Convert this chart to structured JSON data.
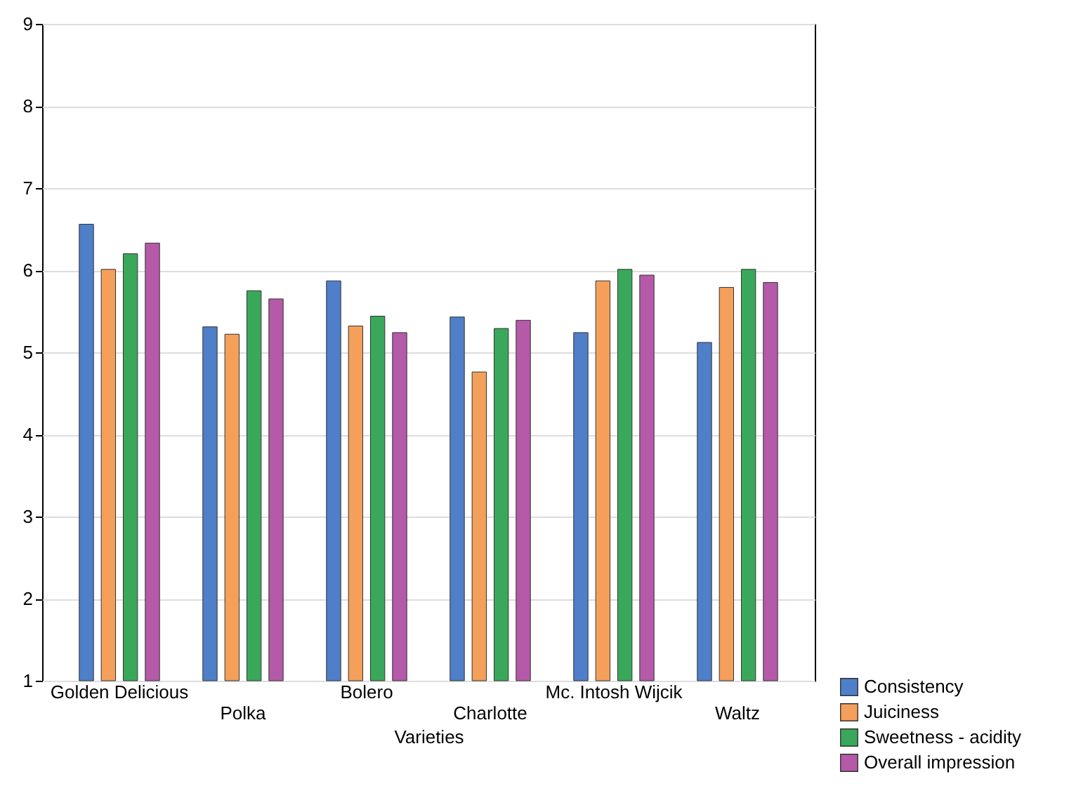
{
  "chart_data": {
    "type": "bar",
    "xlabel": "Varieties",
    "categories": [
      "Golden Delicious",
      "Polka",
      "Bolero",
      "Charlotte",
      "Mc. Intosh Wijcik",
      "Waltz"
    ],
    "series": [
      {
        "name": "Consistency",
        "color": "#4f7fc8",
        "values": [
          6.56,
          5.31,
          5.87,
          5.43,
          5.24,
          5.12
        ]
      },
      {
        "name": "Juiciness",
        "color": "#f4a05a",
        "values": [
          6.01,
          5.22,
          5.32,
          4.76,
          5.87,
          5.79
        ]
      },
      {
        "name": "Sweetness - acidity",
        "color": "#3aa85a",
        "values": [
          6.2,
          5.75,
          5.44,
          5.29,
          6.01,
          6.01
        ]
      },
      {
        "name": "Overall impression",
        "color": "#b45aa8",
        "values": [
          6.33,
          5.65,
          5.24,
          5.39,
          5.94,
          5.85
        ]
      }
    ],
    "ylim": [
      1,
      9
    ],
    "yticks": [
      1,
      2,
      3,
      4,
      5,
      6,
      7,
      8,
      9
    ],
    "grid": "y",
    "legend": "bottom right"
  }
}
